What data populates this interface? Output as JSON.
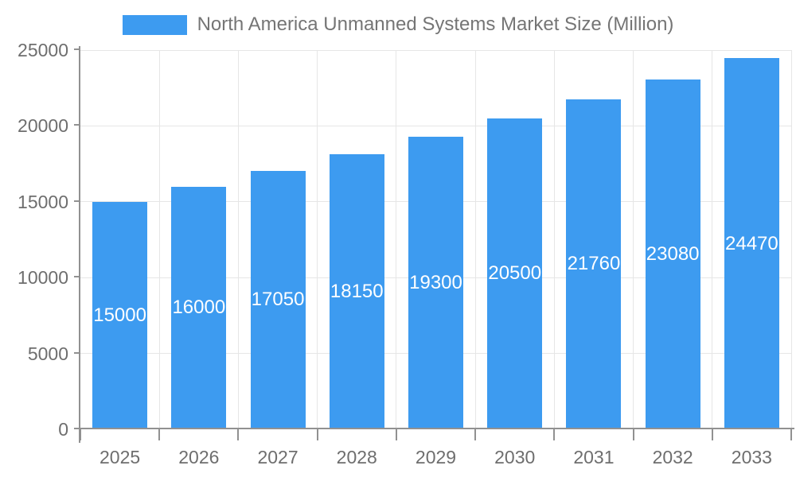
{
  "page": {
    "background": "#ffffff"
  },
  "legend": {
    "label": "North America Unmanned Systems Market Size (Million)"
  },
  "chart_data": {
    "type": "bar",
    "title": "North America Unmanned Systems Market Size (Million)",
    "categories": [
      "2025",
      "2026",
      "2027",
      "2028",
      "2029",
      "2030",
      "2031",
      "2032",
      "2033"
    ],
    "series": [
      {
        "name": "North America Unmanned Systems Market Size (Million)",
        "values": [
          15000,
          16000,
          17050,
          18150,
          19300,
          20500,
          21760,
          23080,
          24470
        ]
      }
    ],
    "data_labels": [
      15000,
      16000,
      17050,
      18150,
      19300,
      20500,
      21760,
      23080,
      24470
    ],
    "xlabel": "",
    "ylabel": "",
    "ylim": [
      0,
      25000
    ],
    "yticks": [
      0,
      5000,
      10000,
      15000,
      20000,
      25000
    ],
    "grid": true,
    "grid_vertical": true,
    "legend_position": "top",
    "data_label_position": "inside-center",
    "colors": {
      "bar": "#3D9BF0",
      "grid": "#e6e6e6",
      "axis": "#919191",
      "tick_label": "#6e6e6e",
      "legend_text": "#757575",
      "data_label": "#ffffff"
    }
  }
}
